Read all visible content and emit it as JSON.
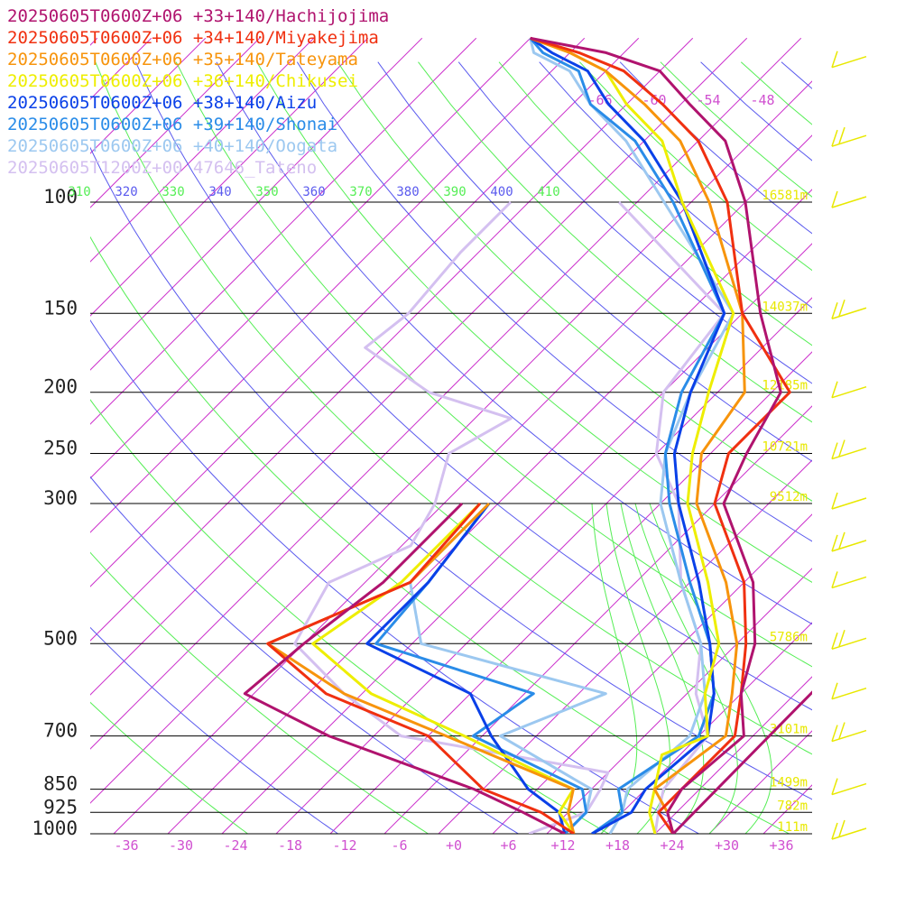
{
  "chart_data": {
    "type": "line",
    "title": "",
    "xlabel": "",
    "ylabel": "",
    "x_ticks": [
      "-36",
      "-30",
      "-24",
      "-18",
      "-12",
      "-6",
      "+0",
      "+6",
      "+12",
      "+18",
      "+24",
      "+30",
      "+36"
    ],
    "pressure_levels": [
      {
        "p": 100,
        "label": "100",
        "height": "16581m"
      },
      {
        "p": 150,
        "label": "150",
        "height": "14037m"
      },
      {
        "p": 200,
        "label": "200",
        "height": "12185m"
      },
      {
        "p": 250,
        "label": "250",
        "height": "10721m"
      },
      {
        "p": 300,
        "label": "300",
        "height": "9512m"
      },
      {
        "p": 500,
        "label": "500",
        "height": "5786m"
      },
      {
        "p": 700,
        "label": "700",
        "height": "3101m"
      },
      {
        "p": 850,
        "label": "850",
        "height": "1499m"
      },
      {
        "p": 925,
        "label": "925",
        "height": "782m"
      },
      {
        "p": 1000,
        "label": "1000",
        "height": "111m"
      }
    ],
    "theta_labels": [
      "310",
      "320",
      "330",
      "340",
      "350",
      "360",
      "370",
      "380",
      "390",
      "400",
      "410"
    ],
    "upper_temp_labels": [
      "-66",
      "-60",
      "-54",
      "-48"
    ],
    "colors": {
      "isobar": "#000000",
      "isotherm": "#cc33cc",
      "dry_adiabat_a": "#5a5aee",
      "dry_adiabat_b": "#55ee55",
      "moist_adiabat": "#55ee55",
      "height_label": "#e8e800",
      "wind_barb": "#e8e800"
    },
    "series": [
      {
        "name": "20250605T0600Z+06 +33+140/Hachijojima",
        "color": "#b0136e",
        "temp": [
          [
            20,
            22
          ],
          [
            1000,
            24
          ],
          [
            925,
            21
          ],
          [
            850,
            20
          ],
          [
            700,
            21
          ],
          [
            600,
            16
          ],
          [
            500,
            12
          ],
          [
            400,
            5
          ],
          [
            300,
            -7
          ],
          [
            250,
            -10
          ],
          [
            200,
            -13
          ],
          [
            150,
            -24
          ],
          [
            100,
            -38
          ],
          [
            80,
            -47
          ],
          [
            70,
            -55
          ],
          [
            62,
            -62
          ],
          [
            58,
            -70
          ],
          [
            55,
            -80
          ]
        ],
        "dewpt": [
          [
            1000,
            12
          ],
          [
            925,
            5
          ],
          [
            850,
            -3
          ],
          [
            700,
            -25
          ],
          [
            600,
            -39
          ],
          [
            500,
            -38
          ],
          [
            400,
            -36
          ],
          [
            300,
            -36
          ]
        ]
      },
      {
        "name": "20250605T0600Z+06 +34+140/Miyakejima",
        "color": "#f03010",
        "temp": [
          [
            1000,
            24
          ],
          [
            925,
            20
          ],
          [
            850,
            20
          ],
          [
            700,
            20
          ],
          [
            600,
            16
          ],
          [
            500,
            11
          ],
          [
            400,
            4
          ],
          [
            300,
            -8
          ],
          [
            250,
            -12
          ],
          [
            200,
            -12
          ],
          [
            150,
            -26
          ],
          [
            100,
            -40
          ],
          [
            80,
            -50
          ],
          [
            70,
            -58
          ],
          [
            62,
            -66
          ],
          [
            58,
            -73
          ],
          [
            55,
            -80
          ]
        ],
        "dewpt": [
          [
            1000,
            13
          ],
          [
            925,
            7
          ],
          [
            850,
            -2
          ],
          [
            700,
            -14
          ],
          [
            600,
            -30
          ],
          [
            500,
            -42
          ],
          [
            400,
            -33
          ],
          [
            300,
            -34
          ]
        ]
      },
      {
        "name": "20250605T0600Z+06 +35+140/Tateyama",
        "color": "#f7940c",
        "temp": [
          [
            1000,
            24
          ],
          [
            925,
            21
          ],
          [
            850,
            17
          ],
          [
            700,
            19
          ],
          [
            600,
            15
          ],
          [
            500,
            10
          ],
          [
            400,
            2
          ],
          [
            300,
            -10
          ],
          [
            250,
            -15
          ],
          [
            200,
            -17
          ],
          [
            150,
            -26
          ],
          [
            100,
            -42
          ],
          [
            80,
            -52
          ],
          [
            70,
            -60
          ],
          [
            62,
            -68
          ],
          [
            58,
            -74
          ],
          [
            55,
            -80
          ]
        ],
        "dewpt": [
          [
            1000,
            13
          ],
          [
            925,
            10
          ],
          [
            850,
            8
          ],
          [
            700,
            -12
          ],
          [
            600,
            -28
          ],
          [
            500,
            -42
          ],
          [
            400,
            -33
          ],
          [
            300,
            -33
          ]
        ]
      },
      {
        "name": "20250605T0600Z+06 +36+140/Chikusei",
        "color": "#eeee00",
        "temp": [
          [
            1000,
            22
          ],
          [
            925,
            19
          ],
          [
            850,
            17
          ],
          [
            750,
            14
          ],
          [
            700,
            17
          ],
          [
            600,
            12
          ],
          [
            500,
            8
          ],
          [
            400,
            0
          ],
          [
            300,
            -11
          ],
          [
            250,
            -16
          ],
          [
            200,
            -21
          ],
          [
            150,
            -27
          ],
          [
            100,
            -45
          ],
          [
            80,
            -54
          ],
          [
            70,
            -62
          ],
          [
            62,
            -68
          ],
          [
            58,
            -74
          ],
          [
            55,
            -80
          ]
        ],
        "dewpt": [
          [
            1000,
            13
          ],
          [
            925,
            9
          ],
          [
            850,
            8
          ],
          [
            700,
            -10
          ],
          [
            600,
            -25
          ],
          [
            500,
            -37
          ],
          [
            400,
            -34
          ],
          [
            300,
            -34
          ]
        ]
      },
      {
        "name": "20250605T0600Z+06 +38+140/Aizu",
        "color": "#0a40e8",
        "temp": [
          [
            1000,
            15
          ],
          [
            925,
            17
          ],
          [
            850,
            16
          ],
          [
            700,
            17
          ],
          [
            600,
            13
          ],
          [
            500,
            7
          ],
          [
            400,
            -1
          ],
          [
            300,
            -12
          ],
          [
            250,
            -18
          ],
          [
            200,
            -23
          ],
          [
            150,
            -28
          ],
          [
            100,
            -45
          ],
          [
            80,
            -56
          ],
          [
            70,
            -64
          ],
          [
            62,
            -70
          ],
          [
            58,
            -76
          ],
          [
            55,
            -80
          ]
        ],
        "dewpt": [
          [
            1000,
            12
          ],
          [
            925,
            9
          ],
          [
            850,
            3
          ],
          [
            700,
            -7
          ],
          [
            600,
            -14
          ],
          [
            500,
            -31
          ],
          [
            400,
            -31
          ],
          [
            300,
            -33
          ]
        ]
      },
      {
        "name": "20250605T0600Z+06 +39+140/Shonai",
        "color": "#2a8ce8",
        "temp": [
          [
            1000,
            15
          ],
          [
            925,
            16
          ],
          [
            850,
            13
          ],
          [
            700,
            16
          ],
          [
            600,
            13
          ],
          [
            500,
            7
          ],
          [
            400,
            -2
          ],
          [
            300,
            -13
          ],
          [
            250,
            -19
          ],
          [
            200,
            -24
          ],
          [
            150,
            -28
          ],
          [
            100,
            -46
          ],
          [
            80,
            -57
          ],
          [
            70,
            -66
          ],
          [
            62,
            -71
          ],
          [
            58,
            -77
          ],
          [
            55,
            -80
          ]
        ],
        "dewpt": [
          [
            1000,
            12
          ],
          [
            925,
            12
          ],
          [
            850,
            9
          ],
          [
            700,
            -9
          ],
          [
            600,
            -7
          ],
          [
            500,
            -30
          ],
          [
            400,
            -31
          ],
          [
            300,
            -33
          ]
        ]
      },
      {
        "name": "20250605T0600Z+06 +40+140/Oogata",
        "color": "#9cc8f0",
        "temp": [
          [
            1000,
            17
          ],
          [
            925,
            16
          ],
          [
            850,
            14
          ],
          [
            700,
            15
          ],
          [
            600,
            12
          ],
          [
            500,
            6
          ],
          [
            400,
            -3
          ],
          [
            300,
            -14
          ],
          [
            250,
            -19
          ],
          [
            200,
            -23
          ],
          [
            150,
            -27
          ],
          [
            100,
            -47
          ],
          [
            80,
            -58
          ],
          [
            70,
            -66
          ],
          [
            62,
            -72
          ],
          [
            58,
            -78
          ],
          [
            55,
            -80
          ]
        ],
        "dewpt": [
          [
            1000,
            12
          ],
          [
            925,
            12
          ],
          [
            850,
            10
          ],
          [
            700,
            -6
          ],
          [
            600,
            1
          ],
          [
            500,
            -25
          ],
          [
            400,
            -33
          ],
          [
            300,
            -33
          ]
        ]
      },
      {
        "name": "20250605T1200Z+00 47646_Tateno",
        "color": "#d4c0f0",
        "temp": [
          [
            1000,
            22
          ],
          [
            925,
            20
          ],
          [
            850,
            18
          ],
          [
            700,
            17
          ],
          [
            600,
            11
          ],
          [
            500,
            6
          ],
          [
            400,
            -3
          ],
          [
            300,
            -12
          ],
          [
            250,
            -20
          ],
          [
            200,
            -26
          ],
          [
            150,
            -28
          ],
          [
            100,
            -52
          ]
        ],
        "dewpt": [
          [
            1000,
            8
          ],
          [
            925,
            12
          ],
          [
            850,
            11
          ],
          [
            800,
            10
          ],
          [
            700,
            -17
          ],
          [
            600,
            -28
          ],
          [
            500,
            -39
          ],
          [
            400,
            -42
          ],
          [
            350,
            -37
          ],
          [
            300,
            -39
          ],
          [
            250,
            -43
          ],
          [
            220,
            -40
          ],
          [
            200,
            -52
          ],
          [
            170,
            -64
          ],
          [
            150,
            -63
          ],
          [
            120,
            -64
          ],
          [
            100,
            -64
          ]
        ]
      }
    ],
    "wind_barbs": [
      {
        "p": 1000
      },
      {
        "p": 850
      },
      {
        "p": 700
      },
      {
        "p": 600
      },
      {
        "p": 500
      },
      {
        "p": 400
      },
      {
        "p": 350
      },
      {
        "p": 300
      },
      {
        "p": 250
      },
      {
        "p": 200
      },
      {
        "p": 150
      },
      {
        "p": 100
      },
      {
        "p": 80
      },
      {
        "p": 60
      }
    ]
  }
}
